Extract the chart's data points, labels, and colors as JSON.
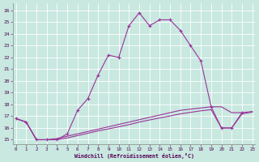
{
  "background_color": "#c8e8e0",
  "grid_color": "#a8ccc4",
  "line_color": "#993399",
  "xlabel": "Windchill (Refroidissement éolien,°C)",
  "x_ticks": [
    0,
    1,
    2,
    3,
    4,
    5,
    6,
    7,
    8,
    9,
    10,
    11,
    12,
    13,
    14,
    15,
    16,
    17,
    18,
    19,
    20,
    21,
    22,
    23
  ],
  "y_ticks": [
    15,
    16,
    17,
    18,
    19,
    20,
    21,
    22,
    23,
    24,
    25,
    26
  ],
  "xlim": [
    -0.3,
    23.3
  ],
  "ylim": [
    14.6,
    26.6
  ],
  "line1_x": [
    0,
    1,
    2,
    3,
    4,
    5,
    6,
    7,
    8,
    9,
    10,
    11,
    12,
    13,
    14,
    15,
    16,
    17,
    18,
    19,
    20,
    21,
    22
  ],
  "line1_y": [
    16.8,
    16.5,
    15.0,
    15.0,
    15.0,
    15.5,
    17.5,
    18.5,
    20.5,
    22.2,
    22.0,
    24.7,
    25.8,
    24.7,
    25.2,
    25.2,
    24.3,
    23.0,
    21.7,
    17.8,
    16.0,
    16.0,
    17.3
  ],
  "line2_x": [
    0,
    1,
    2,
    3,
    4,
    5,
    6,
    7,
    8,
    9,
    10,
    11,
    12,
    13,
    14,
    15,
    16,
    17,
    18,
    19,
    20,
    21,
    22,
    23
  ],
  "line2_y": [
    16.8,
    16.5,
    15.0,
    15.0,
    15.1,
    15.3,
    15.5,
    15.7,
    15.9,
    16.1,
    16.3,
    16.5,
    16.7,
    16.9,
    17.1,
    17.3,
    17.5,
    17.6,
    17.7,
    17.8,
    17.8,
    17.3,
    17.3,
    17.4
  ],
  "line3_x": [
    0,
    1,
    2,
    3,
    4,
    5,
    6,
    7,
    8,
    9,
    10,
    11,
    12,
    13,
    14,
    15,
    16,
    17,
    18,
    19,
    20,
    21,
    22,
    23
  ],
  "line3_y": [
    16.8,
    16.5,
    15.0,
    15.0,
    15.0,
    15.15,
    15.35,
    15.55,
    15.75,
    15.92,
    16.1,
    16.28,
    16.5,
    16.68,
    16.85,
    17.02,
    17.2,
    17.33,
    17.46,
    17.56,
    16.0,
    16.0,
    17.2,
    17.35
  ]
}
